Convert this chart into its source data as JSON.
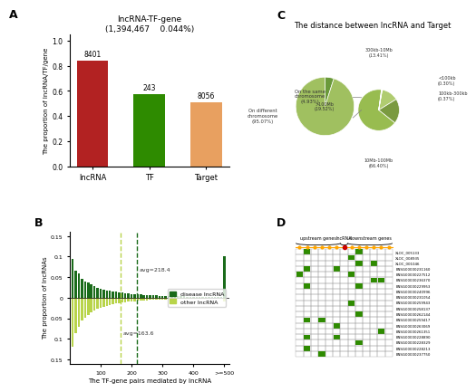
{
  "panel_A": {
    "title": "lncRNA-TF-gene\n(1,394,467    0.044%)",
    "categories": [
      "lncRNA",
      "TF",
      "Target"
    ],
    "values": [
      0.84,
      0.575,
      0.51
    ],
    "labels": [
      "8401",
      "243",
      "8056"
    ],
    "colors": [
      "#b22222",
      "#2e8b00",
      "#e8a060"
    ],
    "ylabel": "The proportion of lncRNA/TF/gene",
    "ylim": [
      0,
      1.0
    ]
  },
  "panel_C": {
    "title": "The distance between lncRNA and Target",
    "big_pie": {
      "sizes": [
        4.93,
        95.07
      ],
      "colors": [
        "#6a9a3a",
        "#a0c060"
      ]
    },
    "small_pie": {
      "sizes": [
        13.41,
        19.52,
        66.4,
        0.37,
        0.3
      ],
      "colors": [
        "#b0cc70",
        "#7a9a40",
        "#98bc50",
        "#c8e090",
        "#d8f0a0"
      ],
      "startangle": 80
    }
  },
  "panel_B": {
    "xlabel": "The TF-gene pairs mediated by lncRNA",
    "ylabel": "The proportion of lncRNAs",
    "avg_disease": 218.4,
    "avg_other": 163.6,
    "disease_color": "#1a6b1a",
    "other_color": "#b8d44a",
    "bins": [
      10,
      20,
      30,
      40,
      50,
      60,
      70,
      80,
      90,
      100,
      110,
      120,
      130,
      140,
      150,
      160,
      170,
      180,
      190,
      200,
      210,
      220,
      230,
      240,
      250,
      260,
      270,
      280,
      290,
      300,
      310,
      320,
      330,
      340,
      350,
      360,
      370,
      380,
      390,
      400,
      410,
      420,
      430,
      440,
      450,
      460,
      470,
      480,
      490,
      500
    ],
    "disease_vals": [
      0.095,
      0.065,
      0.06,
      0.045,
      0.04,
      0.038,
      0.032,
      0.028,
      0.025,
      0.022,
      0.02,
      0.018,
      0.017,
      0.016,
      0.015,
      0.013,
      0.012,
      0.011,
      0.01,
      0.009,
      0.009,
      0.008,
      0.008,
      0.007,
      0.007,
      0.006,
      0.006,
      0.006,
      0.005,
      0.005,
      0.005,
      0.005,
      0.004,
      0.004,
      0.004,
      0.004,
      0.004,
      0.003,
      0.003,
      0.003,
      0.003,
      0.003,
      0.003,
      0.003,
      0.002,
      0.002,
      0.002,
      0.002,
      0.002,
      0.1
    ],
    "other_vals": [
      0.12,
      0.085,
      0.07,
      0.055,
      0.048,
      0.042,
      0.035,
      0.03,
      0.027,
      0.024,
      0.022,
      0.02,
      0.018,
      0.015,
      0.014,
      0.013,
      0.012,
      0.011,
      0.01,
      0.009,
      0.008,
      0.007,
      0.007,
      0.006,
      0.006,
      0.005,
      0.005,
      0.005,
      0.004,
      0.004,
      0.004,
      0.003,
      0.003,
      0.003,
      0.003,
      0.003,
      0.003,
      0.002,
      0.002,
      0.002,
      0.002,
      0.002,
      0.002,
      0.002,
      0.001,
      0.001,
      0.001,
      0.001,
      0.001,
      0.008
    ]
  },
  "panel_D": {
    "genes": [
      "XLOC_005133",
      "XLOC_008935",
      "XLOC_001046",
      "ENSG00000231160",
      "ENSG00000227512",
      "ENSG00000236370",
      "ENSG00000229953",
      "ENSG00000240996",
      "ENSG00000231054",
      "ENSG00000259943",
      "ENSG00000258137",
      "ENSG00000262144",
      "ENSG00000259417",
      "ENSG00000263069",
      "ENSG00000261351",
      "ENSG00000228890",
      "ENSG00000228329",
      "ENSG00000228213",
      "ENSG00000237750"
    ],
    "n_upstream": 6,
    "n_lncrna": 1,
    "n_downstream": 6,
    "grid_color": "#2e8b00",
    "dot_color": "#ffa500",
    "red_dot_col": 6,
    "green_pattern": [
      [
        0,
        1,
        0,
        0,
        0,
        0,
        0,
        0,
        1,
        0,
        0,
        0,
        0
      ],
      [
        0,
        0,
        0,
        0,
        0,
        0,
        0,
        1,
        0,
        0,
        0,
        0,
        0
      ],
      [
        0,
        0,
        0,
        0,
        0,
        0,
        0,
        0,
        1,
        0,
        1,
        0,
        0
      ],
      [
        0,
        1,
        0,
        0,
        0,
        1,
        0,
        0,
        0,
        0,
        0,
        0,
        0
      ],
      [
        1,
        0,
        0,
        0,
        0,
        0,
        0,
        1,
        0,
        0,
        0,
        0,
        0
      ],
      [
        0,
        0,
        0,
        0,
        0,
        0,
        0,
        0,
        0,
        0,
        1,
        1,
        0
      ],
      [
        0,
        1,
        0,
        0,
        0,
        0,
        0,
        0,
        1,
        0,
        0,
        0,
        0
      ],
      [
        0,
        0,
        0,
        0,
        0,
        0,
        0,
        0,
        0,
        0,
        0,
        0,
        0
      ],
      [
        0,
        0,
        0,
        0,
        0,
        0,
        0,
        0,
        0,
        0,
        0,
        0,
        0
      ],
      [
        0,
        0,
        0,
        0,
        0,
        0,
        0,
        1,
        0,
        0,
        0,
        0,
        0
      ],
      [
        0,
        0,
        0,
        0,
        0,
        0,
        0,
        0,
        0,
        0,
        0,
        0,
        0
      ],
      [
        0,
        0,
        0,
        0,
        0,
        0,
        0,
        0,
        1,
        0,
        0,
        0,
        0
      ],
      [
        0,
        1,
        0,
        1,
        0,
        0,
        0,
        0,
        0,
        0,
        0,
        0,
        0
      ],
      [
        0,
        0,
        0,
        0,
        0,
        1,
        0,
        0,
        0,
        0,
        0,
        0,
        0
      ],
      [
        0,
        0,
        0,
        0,
        0,
        0,
        0,
        0,
        0,
        0,
        0,
        1,
        0
      ],
      [
        0,
        1,
        0,
        0,
        0,
        1,
        0,
        0,
        0,
        0,
        0,
        0,
        0
      ],
      [
        0,
        0,
        0,
        0,
        0,
        0,
        0,
        0,
        1,
        0,
        0,
        0,
        0
      ],
      [
        0,
        1,
        0,
        0,
        0,
        0,
        0,
        0,
        0,
        0,
        0,
        0,
        0
      ],
      [
        0,
        0,
        0,
        1,
        0,
        0,
        0,
        0,
        0,
        0,
        0,
        0,
        0
      ]
    ]
  }
}
